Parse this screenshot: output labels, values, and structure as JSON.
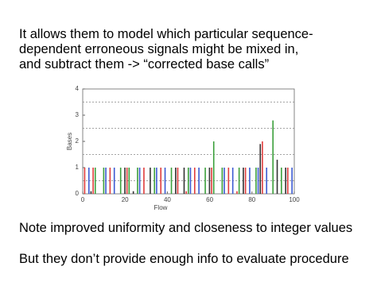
{
  "slide": {
    "lines": [
      "It allows them to model which particular sequence-",
      "dependent erroneous signals might be mixed in,",
      "and subtract them -> “corrected base calls”"
    ],
    "notes": [
      "Note improved uniformity and closeness to integer values",
      "But they don’t provide enough info to evaluate procedure"
    ]
  },
  "chart_data": {
    "type": "bar",
    "x_label": "Flow",
    "y_label": "Bases",
    "x": [
      1,
      2,
      3,
      4,
      5,
      6,
      7,
      8,
      9,
      10,
      11,
      12,
      13,
      14,
      15,
      16,
      17,
      18,
      19,
      20,
      21,
      22,
      23,
      24,
      25,
      26,
      27,
      28,
      29,
      30,
      31,
      32,
      33,
      34,
      35,
      36,
      37,
      38,
      39,
      40,
      41,
      42,
      43,
      44,
      45,
      46,
      47,
      48,
      49,
      50,
      51,
      52,
      53,
      54,
      55,
      56,
      57,
      58,
      59,
      60,
      61,
      62,
      63,
      64,
      65,
      66,
      67,
      68,
      69,
      70,
      71,
      72,
      73,
      74,
      75,
      76,
      77,
      78,
      79,
      80,
      81,
      82,
      83,
      84,
      85,
      86,
      87,
      88,
      89,
      90,
      91,
      92,
      93,
      94,
      95,
      96,
      97,
      98,
      99,
      100
    ],
    "values": [
      1,
      0,
      1,
      0.1,
      1,
      1,
      0,
      0,
      0,
      1,
      1,
      0,
      1,
      0,
      1,
      0,
      0,
      1,
      0,
      1,
      1,
      1,
      0,
      0.1,
      0,
      1,
      1,
      0,
      1,
      0,
      0,
      1,
      0,
      1,
      1,
      0,
      1,
      0,
      1,
      0,
      0,
      1,
      0,
      1,
      1,
      0,
      0,
      1,
      0.1,
      1,
      1,
      0,
      1,
      0,
      1,
      0,
      0,
      1,
      0,
      1,
      1,
      2,
      0,
      0,
      0,
      1,
      1,
      0,
      1,
      0,
      1,
      0,
      0.1,
      1,
      0,
      1,
      1,
      0,
      1,
      0,
      0,
      1,
      1,
      1.9,
      2,
      0,
      1,
      0,
      0,
      2.8,
      0,
      1.3,
      0,
      1,
      0,
      1,
      1,
      0,
      1,
      0
    ],
    "colors": [
      "#e03c3c",
      "#3ca03c",
      "#3c5ad2",
      "#333333"
    ],
    "guides": [
      0.5,
      1.5,
      2.5,
      3.5
    ],
    "xlim": [
      0,
      100
    ],
    "xticks": [
      0,
      20,
      40,
      60,
      80,
      100
    ],
    "ylim": [
      0,
      4
    ],
    "yticks": [
      0,
      1,
      2,
      3,
      4
    ]
  }
}
